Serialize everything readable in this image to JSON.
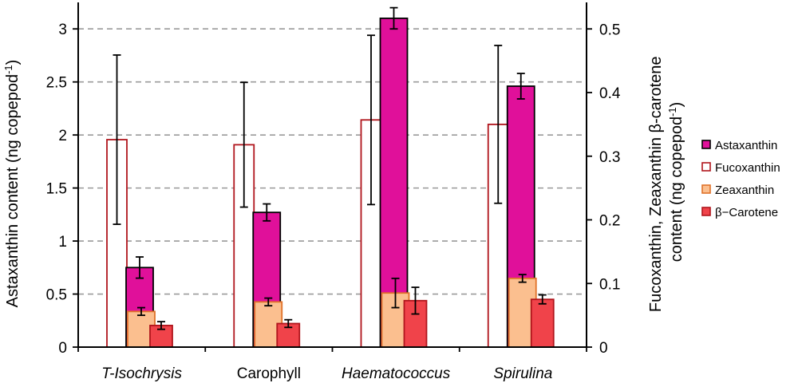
{
  "chart_data": {
    "type": "bar",
    "categories": [
      "T-Isochrysis",
      "Carophyll",
      "Haematococcus",
      "Spirulina"
    ],
    "categories_italic": [
      true,
      false,
      true,
      true
    ],
    "left_axis": {
      "label": "Astaxanthin content (ng copepod",
      "label_sup": "-1",
      "label_end": ")",
      "ylim": [
        0,
        3.25
      ],
      "ticks": [
        0,
        0.5,
        1,
        1.5,
        2,
        2.5,
        3
      ],
      "tick_labels": [
        "0",
        "0.5",
        "1",
        "1.5",
        "2",
        "2.5",
        "3"
      ]
    },
    "right_axis": {
      "label_line1": "Fucoxanthin, Zeaxanthin β-carotene",
      "label_line2": "content (ng copepod",
      "label_sup": "-1",
      "label_end": ")",
      "ylim": [
        0,
        0.5417
      ],
      "ticks": [
        0,
        0.1,
        0.2,
        0.3,
        0.4,
        0.5
      ],
      "tick_labels": [
        "0",
        "0.1",
        "0.2",
        "0.3",
        "0.4",
        "0.5"
      ]
    },
    "grid": "horizontal dashed",
    "legend_position": "right",
    "series": [
      {
        "name": "Astaxanthin",
        "axis": "left",
        "values": [
          0.75,
          1.27,
          3.1,
          2.46
        ],
        "errors": [
          0.1,
          0.08,
          0.1,
          0.12
        ],
        "fill": "#e0109a",
        "stroke": "#000000"
      },
      {
        "name": "Fucoxanthin",
        "axis": "right",
        "values": [
          0.326,
          0.318,
          0.357,
          0.35
        ],
        "errors": [
          0.133,
          0.098,
          0.133,
          0.124
        ],
        "fill": "#ffffff",
        "stroke": "#b0151c"
      },
      {
        "name": "Zeaxanthin",
        "axis": "right",
        "values": [
          0.056,
          0.071,
          0.085,
          0.108
        ],
        "errors": [
          0.006,
          0.006,
          0.023,
          0.006
        ],
        "fill": "#fbbf8f",
        "stroke": "#e0722a"
      },
      {
        "name": "β−Carotene",
        "axis": "right",
        "values": [
          0.034,
          0.037,
          0.073,
          0.075
        ],
        "errors": [
          0.006,
          0.006,
          0.021,
          0.007
        ],
        "fill": "#f0434a",
        "stroke": "#b0151c"
      }
    ]
  }
}
